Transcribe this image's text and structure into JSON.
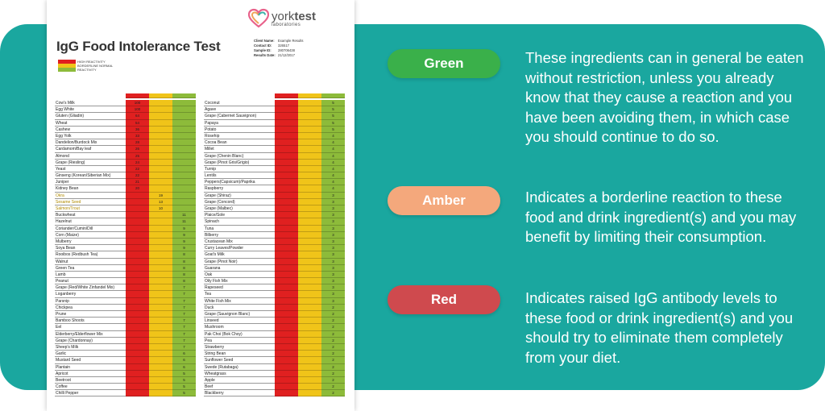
{
  "document": {
    "title": "IgG Food Intolerance Test",
    "logo": {
      "brand_light": "york",
      "brand_bold": "test",
      "sub": "laboratories"
    },
    "legend": [
      "HIGH REACTIVITY",
      "BORDERLINE NORMAL",
      "REACTIVITY"
    ],
    "info": [
      {
        "key": "Client Name:",
        "value": "Example Results"
      },
      {
        "key": "Contact ID:",
        "value": "326517"
      },
      {
        "key": "Sample ID:",
        "value": "280706438"
      },
      {
        "key": "Results Date:",
        "value": "21/12/2017"
      }
    ],
    "colors": {
      "red": "#e02020",
      "amber": "#f0c419",
      "green": "#8dbb3a"
    },
    "left_table": [
      {
        "name": "Cow's Milk",
        "value": "100",
        "level": "red"
      },
      {
        "name": "Egg White",
        "value": "100",
        "level": "red"
      },
      {
        "name": "Gluten (Gliadin)",
        "value": "64",
        "level": "red"
      },
      {
        "name": "Wheat",
        "value": "54",
        "level": "red"
      },
      {
        "name": "Cashew",
        "value": "36",
        "level": "red"
      },
      {
        "name": "Egg Yolk",
        "value": "33",
        "level": "red"
      },
      {
        "name": "Dandelion/Burdock Mix",
        "value": "28",
        "level": "red"
      },
      {
        "name": "Cardamom/Bay leaf",
        "value": "26",
        "level": "red"
      },
      {
        "name": "Almond",
        "value": "25",
        "level": "red"
      },
      {
        "name": "Grape (Riesling)",
        "value": "24",
        "level": "red"
      },
      {
        "name": "Yeast",
        "value": "22",
        "level": "red"
      },
      {
        "name": "Ginseng (Korean/Siberian Mix)",
        "value": "22",
        "level": "red"
      },
      {
        "name": "Juniper",
        "value": "21",
        "level": "red"
      },
      {
        "name": "Kidney Bean",
        "value": "20",
        "level": "red"
      },
      {
        "name": "Okra",
        "value": "19",
        "level": "amber"
      },
      {
        "name": "Sesame Seed",
        "value": "13",
        "level": "amber"
      },
      {
        "name": "Salmon/Trout",
        "value": "10",
        "level": "amber"
      },
      {
        "name": "Buckwheat",
        "value": "11",
        "level": "green"
      },
      {
        "name": "Hazelnut",
        "value": "11",
        "level": "green"
      },
      {
        "name": "Coriander/Cumin/Dill",
        "value": "9",
        "level": "green"
      },
      {
        "name": "Corn (Maize)",
        "value": "9",
        "level": "green"
      },
      {
        "name": "Mulberry",
        "value": "9",
        "level": "green"
      },
      {
        "name": "Soya Bean",
        "value": "9",
        "level": "green"
      },
      {
        "name": "Rooibos (Redbush Tea)",
        "value": "8",
        "level": "green"
      },
      {
        "name": "Walnut",
        "value": "8",
        "level": "green"
      },
      {
        "name": "Green Tea",
        "value": "8",
        "level": "green"
      },
      {
        "name": "Lamb",
        "value": "8",
        "level": "green"
      },
      {
        "name": "Peanut",
        "value": "8",
        "level": "green"
      },
      {
        "name": "Grape (Red/White Zinfandel Mix)",
        "value": "7",
        "level": "green"
      },
      {
        "name": "Loganberry",
        "value": "7",
        "level": "green"
      },
      {
        "name": "Parsnip",
        "value": "7",
        "level": "green"
      },
      {
        "name": "Chickpea",
        "value": "7",
        "level": "green"
      },
      {
        "name": "Prune",
        "value": "7",
        "level": "green"
      },
      {
        "name": "Bamboo Shoots",
        "value": "7",
        "level": "green"
      },
      {
        "name": "Eel",
        "value": "7",
        "level": "green"
      },
      {
        "name": "Elderberry/Elderflower Mix",
        "value": "7",
        "level": "green"
      },
      {
        "name": "Grape (Chardonnay)",
        "value": "7",
        "level": "green"
      },
      {
        "name": "Sheep's Milk",
        "value": "7",
        "level": "green"
      },
      {
        "name": "Garlic",
        "value": "6",
        "level": "green"
      },
      {
        "name": "Mustard Seed",
        "value": "6",
        "level": "green"
      },
      {
        "name": "Plantain",
        "value": "6",
        "level": "green"
      },
      {
        "name": "Apricot",
        "value": "5",
        "level": "green"
      },
      {
        "name": "Beetroot",
        "value": "5",
        "level": "green"
      },
      {
        "name": "Coffee",
        "value": "5",
        "level": "green"
      },
      {
        "name": "Chilli Pepper",
        "value": "5",
        "level": "green"
      }
    ],
    "right_table": [
      {
        "name": "Coconut",
        "value": "5",
        "level": "green"
      },
      {
        "name": "Agave",
        "value": "5",
        "level": "green"
      },
      {
        "name": "Grape (Cabernet Sauvignon)",
        "value": "5",
        "level": "green"
      },
      {
        "name": "Papaya",
        "value": "5",
        "level": "green"
      },
      {
        "name": "Potato",
        "value": "5",
        "level": "green"
      },
      {
        "name": "Rosehip",
        "value": "4",
        "level": "green"
      },
      {
        "name": "Cocoa Bean",
        "value": "4",
        "level": "green"
      },
      {
        "name": "Millet",
        "value": "4",
        "level": "green"
      },
      {
        "name": "Grape (Chenin Blanc)",
        "value": "4",
        "level": "green"
      },
      {
        "name": "Grape (Pinot Gris/Grigio)",
        "value": "4",
        "level": "green"
      },
      {
        "name": "Turnip",
        "value": "4",
        "level": "green"
      },
      {
        "name": "Lentils",
        "value": "4",
        "level": "green"
      },
      {
        "name": "Peppers(Capsicum)/Paprika",
        "value": "4",
        "level": "green"
      },
      {
        "name": "Raspberry",
        "value": "4",
        "level": "green"
      },
      {
        "name": "Grape (Shiraz)",
        "value": "3",
        "level": "green"
      },
      {
        "name": "Grape (Concord)",
        "value": "3",
        "level": "green"
      },
      {
        "name": "Grape (Malbec)",
        "value": "3",
        "level": "green"
      },
      {
        "name": "Plaice/Sole",
        "value": "3",
        "level": "green"
      },
      {
        "name": "Spinach",
        "value": "3",
        "level": "green"
      },
      {
        "name": "Tuna",
        "value": "3",
        "level": "green"
      },
      {
        "name": "Bilberry",
        "value": "3",
        "level": "green"
      },
      {
        "name": "Crustacean Mix",
        "value": "3",
        "level": "green"
      },
      {
        "name": "Curry Leaves/Powder",
        "value": "3",
        "level": "green"
      },
      {
        "name": "Goat's Milk",
        "value": "3",
        "level": "green"
      },
      {
        "name": "Grape (Pinot Noir)",
        "value": "3",
        "level": "green"
      },
      {
        "name": "Guarana",
        "value": "3",
        "level": "green"
      },
      {
        "name": "Oak",
        "value": "3",
        "level": "green"
      },
      {
        "name": "Oily Fish Mix",
        "value": "3",
        "level": "green"
      },
      {
        "name": "Rapeseed",
        "value": "3",
        "level": "green"
      },
      {
        "name": "Tea",
        "value": "3",
        "level": "green"
      },
      {
        "name": "White Fish Mix",
        "value": "3",
        "level": "green"
      },
      {
        "name": "Duck",
        "value": "2",
        "level": "green"
      },
      {
        "name": "Grape (Sauvignon Blanc)",
        "value": "2",
        "level": "green"
      },
      {
        "name": "Linseed",
        "value": "2",
        "level": "green"
      },
      {
        "name": "Mushroom",
        "value": "2",
        "level": "green"
      },
      {
        "name": "Pak Choi (Bok Choy)",
        "value": "2",
        "level": "green"
      },
      {
        "name": "Pea",
        "value": "2",
        "level": "green"
      },
      {
        "name": "Strawberry",
        "value": "2",
        "level": "green"
      },
      {
        "name": "String Bean",
        "value": "2",
        "level": "green"
      },
      {
        "name": "Sunflower Seed",
        "value": "2",
        "level": "green"
      },
      {
        "name": "Swede (Rutabaga)",
        "value": "2",
        "level": "green"
      },
      {
        "name": "Wheatgrass",
        "value": "2",
        "level": "green"
      },
      {
        "name": "Apple",
        "value": "2",
        "level": "green"
      },
      {
        "name": "Beef",
        "value": "2",
        "level": "green"
      },
      {
        "name": "Blackberry",
        "value": "2",
        "level": "green"
      }
    ]
  },
  "key": {
    "green": {
      "label": "Green",
      "text": "These ingredients can in general be eaten without restriction, unless you already know that they cause a reaction and you have been avoiding them, in which case you should continue to do so.",
      "color": "#3ab04a"
    },
    "amber": {
      "label": "Amber",
      "text": "Indicates a borderline reaction to these food and drink ingredient(s) and you may benefit by limiting their consumption.",
      "color": "#f4a87c"
    },
    "red": {
      "label": "Red",
      "text": "Indicates raised IgG antibody levels to these food or drink ingredient(s) and you should try to eliminate them completely from your diet.",
      "color": "#cf4a4e"
    }
  }
}
